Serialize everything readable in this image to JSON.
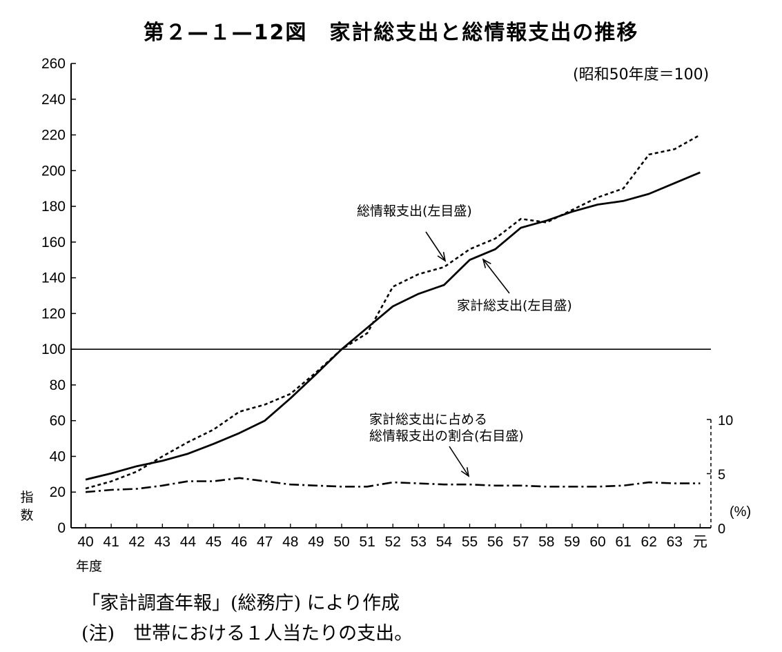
{
  "title": "第２—１—12図　家計総支出と総情報支出の推移",
  "base_note": "(昭和50年度＝100)",
  "source": "「家計調査年報」(総務庁) により作成",
  "note": "(注)　世帯における１人当たりの支出。",
  "chart_data": {
    "type": "line",
    "x": [
      "40",
      "41",
      "42",
      "43",
      "44",
      "45",
      "46",
      "47",
      "48",
      "49",
      "50",
      "51",
      "52",
      "53",
      "54",
      "55",
      "56",
      "57",
      "58",
      "59",
      "60",
      "61",
      "62",
      "63",
      "元"
    ],
    "xlabel": "年度",
    "ylabel": "指数",
    "ylim": [
      0,
      260
    ],
    "yticks": [
      0,
      20,
      40,
      60,
      80,
      100,
      120,
      140,
      160,
      180,
      200,
      220,
      240,
      260
    ],
    "y2label": "(%)",
    "y2lim": [
      0,
      10
    ],
    "y2ticks": [
      0,
      5,
      10
    ],
    "reference_line": 100,
    "series": [
      {
        "name": "家計総支出(左目盛)",
        "axis": "left",
        "style": "solid",
        "values": [
          27,
          30.5,
          34.5,
          37.5,
          41.5,
          47,
          53,
          60,
          72.5,
          86,
          100,
          112,
          124,
          131,
          136,
          150,
          156,
          168,
          172,
          177,
          181,
          183,
          187,
          193,
          199
        ]
      },
      {
        "name": "総情報支出(左目盛)",
        "axis": "left",
        "style": "dashed",
        "values": [
          22,
          26,
          31.5,
          40,
          48,
          55,
          65,
          69,
          75,
          87,
          100,
          109,
          135,
          142,
          146,
          156,
          162,
          173,
          171,
          178,
          185,
          190,
          209,
          212,
          220
        ]
      },
      {
        "name": "家計総支出に占める\n総情報支出の割合(右目盛)",
        "axis": "right",
        "style": "dashdot",
        "values": [
          3.3,
          3.5,
          3.6,
          3.9,
          4.3,
          4.3,
          4.6,
          4.3,
          4.0,
          3.9,
          3.8,
          3.8,
          4.2,
          4.1,
          4.0,
          4.0,
          3.9,
          3.9,
          3.8,
          3.8,
          3.8,
          3.9,
          4.2,
          4.1,
          4.1
        ]
      }
    ]
  }
}
